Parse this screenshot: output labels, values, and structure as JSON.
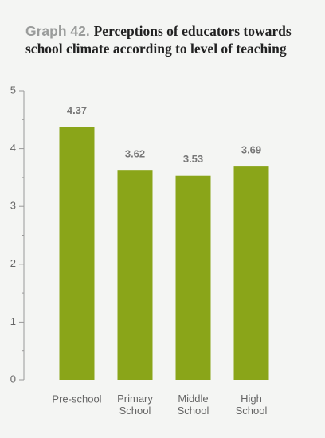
{
  "chart_data": {
    "type": "bar",
    "title_label": "Graph 42.",
    "title": "Perceptions of educators towards school climate according to level of teaching",
    "categories": [
      "Pre-school",
      "Primary School",
      "Middle School",
      "High School"
    ],
    "values": [
      4.37,
      3.62,
      3.53,
      3.69
    ],
    "color": "#8aa519",
    "ylim": [
      0,
      5
    ],
    "yticks": [
      0,
      1,
      2,
      3,
      4,
      5
    ],
    "minor_yticks": [
      0.5,
      1.5,
      2.5,
      3.5,
      4.5
    ],
    "grid": false
  }
}
